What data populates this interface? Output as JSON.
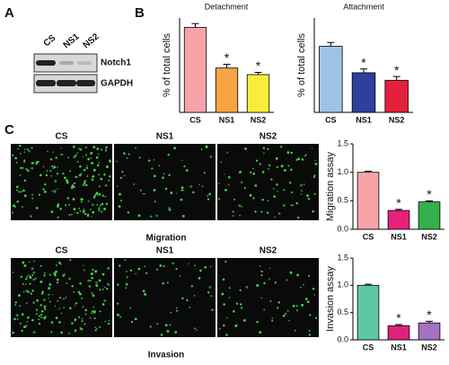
{
  "panels": [
    "A",
    "B",
    "C"
  ],
  "blot": {
    "lanes": [
      "CS",
      "NS1",
      "NS2"
    ],
    "bands": [
      "Notch1",
      "GAPDH"
    ]
  },
  "images": {
    "rows": [
      {
        "columns": [
          "CS",
          "NS1",
          "NS2"
        ],
        "caption": "Migration"
      },
      {
        "columns": [
          "CS",
          "NS1",
          "NS2"
        ],
        "caption": "Invasion"
      }
    ]
  },
  "chart_data": [
    {
      "type": "bar",
      "title": "Detachment",
      "ylabel": "% of total cells",
      "categories": [
        "CS",
        "NS1",
        "NS2"
      ],
      "values": [
        45,
        23.5,
        20
      ],
      "errors": [
        2,
        2,
        1.2
      ],
      "colors": [
        "#f6a3aa",
        "#f7a444",
        "#f6ee3a"
      ],
      "significance": [
        null,
        "*",
        "*"
      ],
      "ylim": [
        0,
        50
      ]
    },
    {
      "type": "bar",
      "title": "Attachment",
      "ylabel": "% of total cells",
      "categories": [
        "CS",
        "NS1",
        "NS2"
      ],
      "values": [
        35,
        21,
        17
      ],
      "errors": [
        2,
        2,
        2
      ],
      "colors": [
        "#9dc3e6",
        "#2e3f9e",
        "#e3213c"
      ],
      "significance": [
        null,
        "*",
        "*"
      ],
      "ylim": [
        0,
        50
      ]
    },
    {
      "type": "bar",
      "ylabel": "Migration assay",
      "categories": [
        "CS",
        "NS1",
        "NS2"
      ],
      "values": [
        1.0,
        0.33,
        0.48
      ],
      "errors": [
        0.02,
        0.02,
        0.02
      ],
      "colors": [
        "#f6a3aa",
        "#e8217a",
        "#35b04a"
      ],
      "significance": [
        null,
        "*",
        "*"
      ],
      "ylim": [
        0,
        1.5
      ],
      "yticks": [
        {
          "value": 0,
          "label": "0.0"
        },
        0.5,
        {
          "value": 1,
          "label": "1.0"
        },
        1.5
      ]
    },
    {
      "type": "bar",
      "ylabel": "Invasion assay",
      "categories": [
        "CS",
        "NS1",
        "NS2"
      ],
      "values": [
        1.0,
        0.26,
        0.31
      ],
      "errors": [
        0.02,
        0.02,
        0.03
      ],
      "colors": [
        "#5fc8a0",
        "#e0217a",
        "#a472c2"
      ],
      "significance": [
        null,
        "*",
        "*"
      ],
      "ylim": [
        0,
        1.5
      ],
      "yticks": [
        {
          "value": 0,
          "label": "0.0"
        },
        0.5,
        {
          "value": 1,
          "label": "1.0"
        },
        1.5
      ]
    }
  ]
}
